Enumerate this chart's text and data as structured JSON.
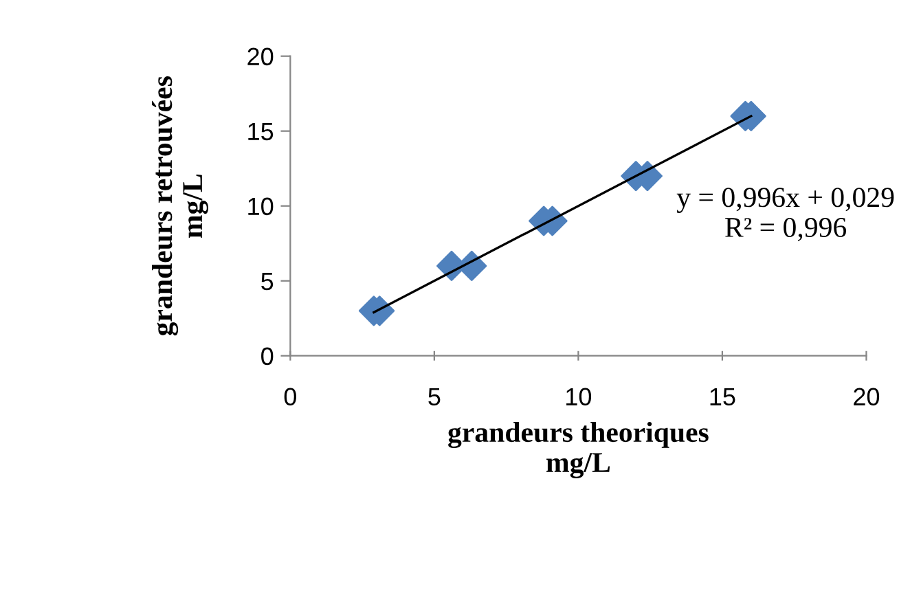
{
  "chart_data": {
    "type": "scatter",
    "xlabel": "grandeurs theoriques\nmg/L",
    "ylabel": "grandeurs retrouvées\nmg/L",
    "xlim": [
      0,
      20
    ],
    "ylim": [
      0,
      20
    ],
    "xticks": [
      0,
      5,
      10,
      15,
      20
    ],
    "yticks": [
      0,
      5,
      10,
      15,
      20
    ],
    "grid": false,
    "legend": false,
    "marker": "diamond",
    "series": [
      {
        "color": "#4f81bd",
        "x": [
          2.9,
          3.1,
          5.6,
          6.3,
          8.8,
          9.1,
          12.0,
          12.4,
          15.8,
          16.0
        ],
        "values": [
          3,
          3,
          6,
          6,
          9,
          9,
          12,
          12,
          16,
          16
        ]
      },
      {
        "type": "line",
        "color": "#000000",
        "x": [
          2.9,
          16.0
        ],
        "values": [
          2.9,
          16.0
        ],
        "marker": "none",
        "line_style": "solid"
      }
    ],
    "annotations": [
      "y = 0,996x + 0,029\nR² = 0,996"
    ]
  }
}
